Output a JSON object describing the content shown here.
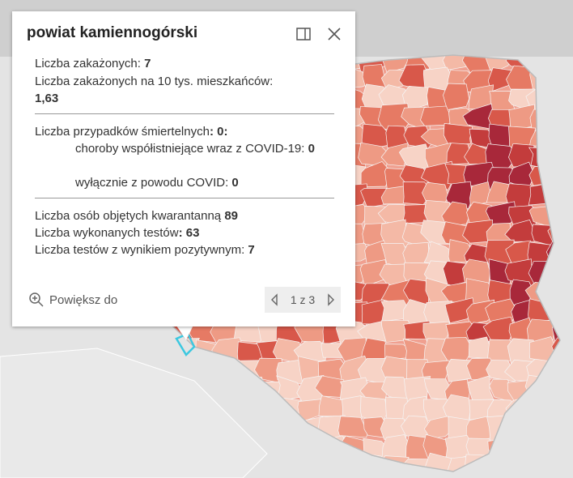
{
  "popup": {
    "title": "powiat kamiennogórski",
    "rows": [
      {
        "label": "Liczba zakażonych: ",
        "value": "7"
      },
      {
        "label": "Liczba zakażonych na 10 tys. mieszkańców:",
        "value": "1,63"
      },
      {
        "label": "Liczba przypadków śmiertelnych",
        "value": ": 0:"
      },
      {
        "label": "choroby współistniejące wraz z COVID-19: ",
        "value": "0"
      },
      {
        "label": "wyłącznie z powodu COVID: ",
        "value": "0"
      },
      {
        "label": "Liczba osób objętych kwarantanną ",
        "value": "89"
      },
      {
        "label": "Liczba wykonanych testów",
        "value": ": 63"
      },
      {
        "label": "Liczba testów z wynikiem pozytywnym: ",
        "value": "7"
      }
    ],
    "zoom": "Powiększ do",
    "pager": "1 z 3"
  }
}
